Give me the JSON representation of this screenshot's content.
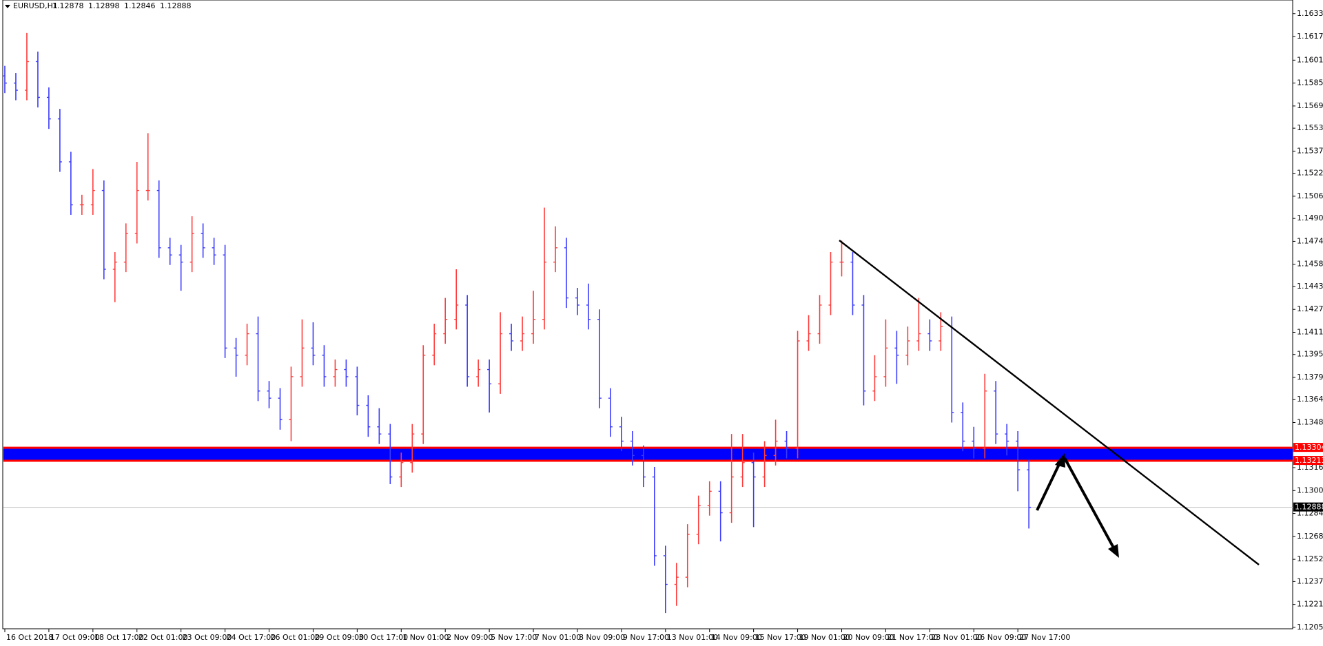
{
  "chart_data": {
    "type": "ohlc",
    "symbol": "EURUSD,H1",
    "header_values": [
      1.12878,
      1.12898,
      1.12846,
      1.12888
    ],
    "up_color": "#ff3b3b",
    "down_color": "#3b3bff",
    "ylim": [
      1.1204,
      1.1643
    ],
    "yticks": [
      1.16335,
      1.16175,
      {
        "value": 1.1601,
        "label": "1.16010"
      },
      {
        "value": 1.1585,
        "label": "1.15850"
      },
      {
        "value": 1.1569,
        "label": "1.15690"
      },
      1.15535,
      1.15375,
      {
        "value": 1.1522,
        "label": "1.15220"
      },
      {
        "value": 1.1506,
        "label": "1.15060"
      },
      1.14905,
      1.14745,
      1.14585,
      {
        "value": 1.1443,
        "label": "1.14430"
      },
      {
        "value": 1.1427,
        "label": "1.14270"
      },
      {
        "value": 1.1411,
        "label": "1.14110"
      },
      1.13955,
      1.13795,
      {
        "value": 1.1364,
        "label": "1.13640"
      },
      {
        "value": 1.1348,
        "label": "1.13480"
      },
      1.13165,
      1.13005,
      1.12845,
      1.12685,
      1.12525,
      {
        "value": 1.1237,
        "label": "1.12370"
      },
      {
        "value": 1.1221,
        "label": "1.12210"
      },
      {
        "value": 1.1205,
        "label": "1.12050"
      }
    ],
    "zone": {
      "top": 1.13304,
      "bottom": 1.13213,
      "fill": "#0000ff",
      "line_color": "#ff0000"
    },
    "last_price": 1.12888,
    "categories": [
      "16 Oct 2018",
      null,
      null,
      null,
      "17 Oct 09:00",
      null,
      null,
      null,
      "18 Oct 17:00",
      null,
      null,
      null,
      "22 Oct 01:00",
      null,
      null,
      null,
      "23 Oct 09:00",
      null,
      null,
      null,
      "24 Oct 17:00",
      null,
      null,
      null,
      "26 Oct 01:00",
      null,
      null,
      null,
      "29 Oct 09:00",
      null,
      null,
      null,
      "30 Oct 17:00",
      null,
      null,
      null,
      "1 Nov 01:00",
      null,
      null,
      null,
      "2 Nov 09:00",
      null,
      null,
      null,
      "5 Nov 17:00",
      null,
      null,
      null,
      "7 Nov 01:00",
      null,
      null,
      null,
      "8 Nov 09:00",
      null,
      null,
      null,
      "9 Nov 17:00",
      null,
      null,
      null,
      "13 Nov 01:00",
      null,
      null,
      null,
      "14 Nov 09:00",
      null,
      null,
      null,
      "15 Nov 17:00",
      null,
      null,
      null,
      "19 Nov 01:00",
      null,
      null,
      null,
      "20 Nov 09:00",
      null,
      null,
      null,
      "21 Nov 17:00",
      null,
      null,
      null,
      "23 Nov 01:00",
      null,
      null,
      null,
      "26 Nov 09:00",
      null,
      null,
      null,
      "27 Nov 17:00",
      null
    ],
    "ohlc": [
      [
        1.159,
        1.1597,
        1.1578,
        1.1585
      ],
      [
        1.1585,
        1.1592,
        1.1573,
        1.158
      ],
      [
        1.158,
        1.162,
        1.1573,
        1.16
      ],
      [
        1.16,
        1.1607,
        1.1568,
        1.1575
      ],
      [
        1.1575,
        1.1582,
        1.1553,
        1.156
      ],
      [
        1.156,
        1.1567,
        1.1523,
        1.153
      ],
      [
        1.153,
        1.1537,
        1.1493,
        1.15
      ],
      [
        1.15,
        1.1507,
        1.1493,
        1.15
      ],
      [
        1.15,
        1.1525,
        1.1493,
        1.151
      ],
      [
        1.151,
        1.1517,
        1.1448,
        1.1455
      ],
      [
        1.1455,
        1.1467,
        1.1432,
        1.146
      ],
      [
        1.146,
        1.1487,
        1.1453,
        1.148
      ],
      [
        1.148,
        1.153,
        1.1473,
        1.151
      ],
      [
        1.151,
        1.155,
        1.1503,
        1.151
      ],
      [
        1.151,
        1.1517,
        1.1463,
        1.147
      ],
      [
        1.147,
        1.1477,
        1.1458,
        1.1465
      ],
      [
        1.1465,
        1.1472,
        1.144,
        1.146
      ],
      [
        1.146,
        1.1492,
        1.1453,
        1.148
      ],
      [
        1.148,
        1.1487,
        1.1463,
        1.147
      ],
      [
        1.147,
        1.1477,
        1.1458,
        1.1465
      ],
      [
        1.1465,
        1.1472,
        1.1393,
        1.14
      ],
      [
        1.14,
        1.1407,
        1.138,
        1.1395
      ],
      [
        1.1395,
        1.1417,
        1.1388,
        1.141
      ],
      [
        1.141,
        1.1422,
        1.1363,
        1.137
      ],
      [
        1.137,
        1.1377,
        1.1358,
        1.1365
      ],
      [
        1.1365,
        1.1372,
        1.1343,
        1.135
      ],
      [
        1.135,
        1.1387,
        1.1335,
        1.138
      ],
      [
        1.138,
        1.142,
        1.1373,
        1.14
      ],
      [
        1.14,
        1.1418,
        1.1388,
        1.1395
      ],
      [
        1.1395,
        1.1402,
        1.1373,
        1.138
      ],
      [
        1.138,
        1.1392,
        1.1373,
        1.1385
      ],
      [
        1.1385,
        1.1392,
        1.1373,
        1.138
      ],
      [
        1.138,
        1.1387,
        1.1353,
        1.136
      ],
      [
        1.136,
        1.1367,
        1.1338,
        1.1345
      ],
      [
        1.1345,
        1.1358,
        1.1333,
        1.134
      ],
      [
        1.134,
        1.1347,
        1.1305,
        1.131
      ],
      [
        1.131,
        1.1327,
        1.1303,
        1.132
      ],
      [
        1.132,
        1.1347,
        1.1313,
        1.134
      ],
      [
        1.134,
        1.1402,
        1.1333,
        1.1395
      ],
      [
        1.1395,
        1.1417,
        1.1388,
        1.141
      ],
      [
        1.141,
        1.1435,
        1.1403,
        1.142
      ],
      [
        1.142,
        1.1455,
        1.1413,
        1.143
      ],
      [
        1.143,
        1.1437,
        1.1373,
        1.138
      ],
      [
        1.138,
        1.1392,
        1.1373,
        1.1385
      ],
      [
        1.1385,
        1.1392,
        1.1355,
        1.1375
      ],
      [
        1.1375,
        1.1425,
        1.1368,
        1.141
      ],
      [
        1.141,
        1.1417,
        1.1398,
        1.1405
      ],
      [
        1.1405,
        1.1422,
        1.1398,
        1.141
      ],
      [
        1.141,
        1.144,
        1.1403,
        1.142
      ],
      [
        1.142,
        1.1498,
        1.1413,
        1.146
      ],
      [
        1.146,
        1.1485,
        1.1453,
        1.147
      ],
      [
        1.147,
        1.1477,
        1.1428,
        1.1435
      ],
      [
        1.1435,
        1.1442,
        1.1423,
        1.143
      ],
      [
        1.143,
        1.1445,
        1.1413,
        1.142
      ],
      [
        1.142,
        1.1427,
        1.1358,
        1.1365
      ],
      [
        1.1365,
        1.1372,
        1.1338,
        1.1345
      ],
      [
        1.1345,
        1.1352,
        1.1328,
        1.1335
      ],
      [
        1.1335,
        1.1342,
        1.1318,
        1.1325
      ],
      [
        1.1325,
        1.1332,
        1.1303,
        1.131
      ],
      [
        1.131,
        1.1317,
        1.1248,
        1.1255
      ],
      [
        1.1255,
        1.1262,
        1.1215,
        1.1235
      ],
      [
        1.1235,
        1.125,
        1.122,
        1.124
      ],
      [
        1.124,
        1.1277,
        1.1233,
        1.127
      ],
      [
        1.127,
        1.1297,
        1.1263,
        1.129
      ],
      [
        1.129,
        1.1307,
        1.1283,
        1.13
      ],
      [
        1.13,
        1.1307,
        1.1265,
        1.1285
      ],
      [
        1.1285,
        1.134,
        1.1278,
        1.131
      ],
      [
        1.131,
        1.134,
        1.1303,
        1.132
      ],
      [
        1.132,
        1.1327,
        1.1275,
        1.131
      ],
      [
        1.131,
        1.1335,
        1.1303,
        1.1325
      ],
      [
        1.1325,
        1.135,
        1.1318,
        1.1335
      ],
      [
        1.1335,
        1.1342,
        1.1323,
        1.133
      ],
      [
        1.133,
        1.1412,
        1.1323,
        1.1405
      ],
      [
        1.1405,
        1.1423,
        1.1398,
        1.141
      ],
      [
        1.141,
        1.1437,
        1.1403,
        1.143
      ],
      [
        1.143,
        1.1467,
        1.1423,
        1.146
      ],
      [
        1.146,
        1.1475,
        1.145,
        1.146
      ],
      [
        1.146,
        1.1467,
        1.1423,
        1.143
      ],
      [
        1.143,
        1.1437,
        1.136,
        1.137
      ],
      [
        1.137,
        1.1395,
        1.1363,
        1.138
      ],
      [
        1.138,
        1.142,
        1.1373,
        1.14
      ],
      [
        1.14,
        1.1412,
        1.1375,
        1.1395
      ],
      [
        1.1395,
        1.1415,
        1.1388,
        1.1405
      ],
      [
        1.1405,
        1.1435,
        1.1398,
        1.141
      ],
      [
        1.141,
        1.142,
        1.1398,
        1.1405
      ],
      [
        1.1405,
        1.1425,
        1.1398,
        1.1415
      ],
      [
        1.1415,
        1.1422,
        1.1348,
        1.1355
      ],
      [
        1.1355,
        1.1362,
        1.1328,
        1.1335
      ],
      [
        1.1335,
        1.1345,
        1.1323,
        1.133
      ],
      [
        1.133,
        1.1382,
        1.1323,
        1.137
      ],
      [
        1.137,
        1.1377,
        1.1333,
        1.134
      ],
      [
        1.134,
        1.1347,
        1.1325,
        1.1335
      ],
      [
        1.1335,
        1.1342,
        1.13,
        1.1315
      ],
      [
        1.1315,
        1.1322,
        1.1274,
        1.12888
      ]
    ]
  }
}
